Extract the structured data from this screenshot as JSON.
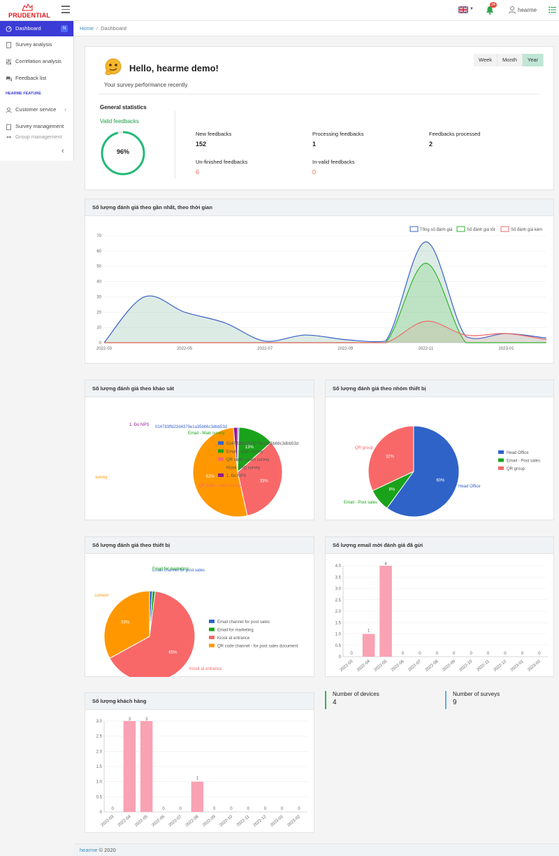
{
  "topbar": {
    "logo_text": "PRUDENTIAL",
    "notification_count": "24",
    "user_name": "hearme"
  },
  "sidebar": {
    "items": [
      {
        "label": "Dashboard",
        "badge": "N"
      },
      {
        "label": "Survey analysis"
      },
      {
        "label": "Correlation analysis"
      },
      {
        "label": "Feedback list"
      },
      {
        "label": "Customer service"
      },
      {
        "label": "Survey management"
      },
      {
        "label": "Group management"
      }
    ],
    "section_heading": "HEARME FEATURE"
  },
  "breadcrumb": {
    "home": "Home",
    "current": "Dashboard"
  },
  "greeting": {
    "hello": "Hello, hearme demo!",
    "subtitle": "Your survey performance recently",
    "periods": [
      "Week",
      "Month",
      "Year"
    ],
    "selected_period": "Year",
    "general_title": "General statistics",
    "valid_title": "Valid feedbacks",
    "valid_percent": "96%",
    "valid_fraction": 0.96,
    "stats": [
      {
        "label": "New feedbacks",
        "value": "152"
      },
      {
        "label": "Processing feedbacks",
        "value": "1"
      },
      {
        "label": "Feedbacks processed",
        "value": "2"
      },
      {
        "label": "Un-finished feedbacks",
        "value": "6"
      },
      {
        "label": "In-valid feedbacks",
        "value": "0"
      }
    ]
  },
  "cards": {
    "timeline": "Số lượng đánh giá theo gần nhất, theo thời gian",
    "by_survey": "Số lượng đánh giá theo khảo sát",
    "by_device_group": "Số lượng đánh giá theo nhóm thiết bị",
    "by_device": "Số lượng đánh giá theo thiết bị",
    "emails": "Số lượng email mời đánh giá đã gửi",
    "customers": "Số lượng khách hàng"
  },
  "counters": {
    "devices_label": "Number of devices",
    "devices_value": "4",
    "surveys_label": "Number of surveys",
    "surveys_value": "9"
  },
  "footer": {
    "brand": "hearme",
    "year": "© 2020"
  },
  "chart_data": [
    {
      "type": "area",
      "title": "Số lượng đánh giá theo gần nhất, theo thời gian",
      "x": [
        "2022-03",
        "2022-04",
        "2022-05",
        "2022-06",
        "2022-07",
        "2022-08",
        "2022-09",
        "2022-10",
        "2022-11",
        "2022-12",
        "2023-01",
        "2023-02"
      ],
      "x_tick_labels": [
        "2022-03",
        "2022-05",
        "2022-07",
        "2022-09",
        "2022-11",
        "2023-01"
      ],
      "ylim": [
        0,
        70
      ],
      "y_ticks": [
        0,
        10,
        20,
        30,
        40,
        50,
        60,
        70
      ],
      "series": [
        {
          "name": "Tổng số đánh giá",
          "color": "#3a62c8",
          "values": [
            0,
            30,
            20,
            13,
            1,
            5,
            2,
            1,
            66,
            4,
            6,
            3
          ]
        },
        {
          "name": "Số đánh giá tốt",
          "color": "#2fb52f",
          "values": [
            0,
            0,
            0,
            0,
            0,
            0,
            0,
            0,
            52,
            0,
            0,
            0
          ]
        },
        {
          "name": "Số đánh giá kém",
          "color": "#f06a6a",
          "values": [
            0,
            0,
            0,
            0,
            0,
            0,
            0,
            0,
            14,
            5,
            6,
            2
          ]
        }
      ],
      "legend": "top-right"
    },
    {
      "type": "pie",
      "title": "Số lượng đánh giá theo khảo sát",
      "labels": [
        "014783ffd22d4379e1a35b66c3dbb53d",
        "Email - Main survey",
        "QR code - main survey",
        "Kiosk - HQ survey",
        "1. Đo NPS"
      ],
      "values": [
        0.5,
        13,
        33,
        52,
        1.5
      ],
      "slice_text": [
        "",
        "13%",
        "33%",
        "52%",
        ""
      ],
      "colors": [
        "#3a62c8",
        "#1aa31a",
        "#f96868",
        "#ff9800",
        "#8e1b8e"
      ],
      "outer_labels": [
        "014783ffd22d4379e1a35b66c3dbb53d",
        "Email - Main survey",
        "QR code - main survey",
        "survey",
        "1. Đo NPS"
      ]
    },
    {
      "type": "pie",
      "title": "Số lượng đánh giá theo nhóm thiết bị",
      "labels": [
        "Head Office",
        "Email - Post sales",
        "QR group"
      ],
      "values": [
        60,
        8,
        32
      ],
      "slice_text": [
        "60%",
        "8%",
        "32%"
      ],
      "colors": [
        "#2f63c8",
        "#1aa31a",
        "#f96868"
      ]
    },
    {
      "type": "pie",
      "title": "Số lượng đánh giá theo thiết bị",
      "labels": [
        "Email channel for post sales",
        "Email for marketing",
        "Kiosk at entrance",
        "QR code channel - for post sales document"
      ],
      "values": [
        1,
        1,
        65,
        33
      ],
      "slice_text": [
        "",
        "",
        "65%",
        "33%"
      ],
      "colors": [
        "#2f63c8",
        "#1aa31a",
        "#f96868",
        "#ff9800"
      ],
      "outer_labels": [
        "Email channel for post sales",
        "Email for marketing",
        "Kiosk at entrance",
        "cument"
      ]
    },
    {
      "type": "bar",
      "title": "Số lượng email mời đánh giá đã gửi",
      "categories": [
        "2022-03",
        "2022-04",
        "2022-05",
        "2022-06",
        "2022-07",
        "2022-08",
        "2022-09",
        "2022-10",
        "2022-11",
        "2022-12",
        "2023-01",
        "2023-02"
      ],
      "values": [
        0,
        1,
        4,
        0,
        0,
        0,
        0,
        0,
        0,
        0,
        0,
        0
      ],
      "ylim": [
        0,
        4
      ],
      "y_ticks": [
        "0",
        "0.5",
        "1.0",
        "1.5",
        "2.0",
        "2.5",
        "3.0",
        "3.5",
        "4.0"
      ],
      "color": "#f9a2b4"
    },
    {
      "type": "bar",
      "title": "Số lượng khách hàng",
      "categories": [
        "2022-03",
        "2022-04",
        "2022-05",
        "2022-06",
        "2022-07",
        "2022-08",
        "2022-09",
        "2022-10",
        "2022-11",
        "2022-12",
        "2023-01",
        "2023-02"
      ],
      "values": [
        0,
        3,
        3,
        0,
        0,
        1,
        0,
        0,
        0,
        0,
        0,
        0
      ],
      "ylim": [
        0,
        3
      ],
      "y_ticks": [
        "0",
        "0.5",
        "1.0",
        "1.5",
        "2.0",
        "2.5",
        "3.0"
      ],
      "color": "#f9a2b4"
    }
  ]
}
